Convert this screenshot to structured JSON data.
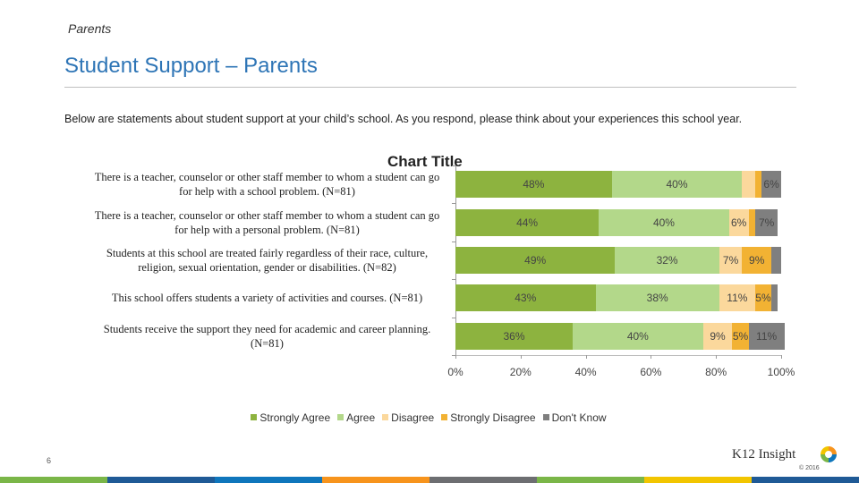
{
  "section": "Parents",
  "title": "Student Support – Parents",
  "description": "Below are statements about student support at your child’s school. As you respond, please think about your experiences this school year.",
  "page_number": "6",
  "logo": "K12 Insight",
  "copyright": "© 2016",
  "chart_data": {
    "type": "stacked-bar-horizontal",
    "title": "Chart Title",
    "categories": [
      "There is a teacher, counselor or other staff member to whom a student can go for help with a school problem. (N=81)",
      "There is a teacher, counselor or other staff member to whom a student can go for help with a personal problem. (N=81)",
      "Students at this school are treated fairly regardless of their race, culture, religion, sexual orientation, gender or disabilities. (N=82)",
      "This school offers students a variety of activities and courses. (N=81)",
      "Students receive the support they need for academic and career planning. (N=81)"
    ],
    "series": [
      {
        "name": "Strongly Agree",
        "color": "#8db33f",
        "values": [
          48,
          44,
          49,
          43,
          36
        ],
        "value_labels": [
          "48%",
          "44%",
          "49%",
          "43%",
          "36%"
        ]
      },
      {
        "name": "Agree",
        "color": "#b3d88a",
        "values": [
          40,
          40,
          32,
          38,
          40
        ],
        "value_labels": [
          "40%",
          "40%",
          "32%",
          "38%",
          "40%"
        ]
      },
      {
        "name": "Disagree",
        "color": "#fbd89c",
        "values": [
          4,
          6,
          7,
          11,
          9
        ],
        "value_labels": [
          null,
          "6%",
          "7%",
          "11%",
          "9%"
        ]
      },
      {
        "name": "Strongly Disagree",
        "color": "#f2b233",
        "values": [
          2,
          2,
          9,
          5,
          5
        ],
        "value_labels": [
          null,
          null,
          "9%",
          "5%",
          "5%"
        ]
      },
      {
        "name": "Don't Know",
        "color": "#7f7f7f",
        "values": [
          6,
          7,
          3,
          2,
          11
        ],
        "value_labels": [
          "6%",
          "7%",
          null,
          null,
          "11%"
        ]
      }
    ],
    "xlim": [
      0,
      100
    ],
    "xticks": [
      {
        "value": 0,
        "label": "0%"
      },
      {
        "value": 20,
        "label": "20%"
      },
      {
        "value": 40,
        "label": "40%"
      },
      {
        "value": 60,
        "label": "60%"
      },
      {
        "value": 80,
        "label": "80%"
      },
      {
        "value": 100,
        "label": "100%"
      }
    ],
    "legend": "bottom"
  }
}
